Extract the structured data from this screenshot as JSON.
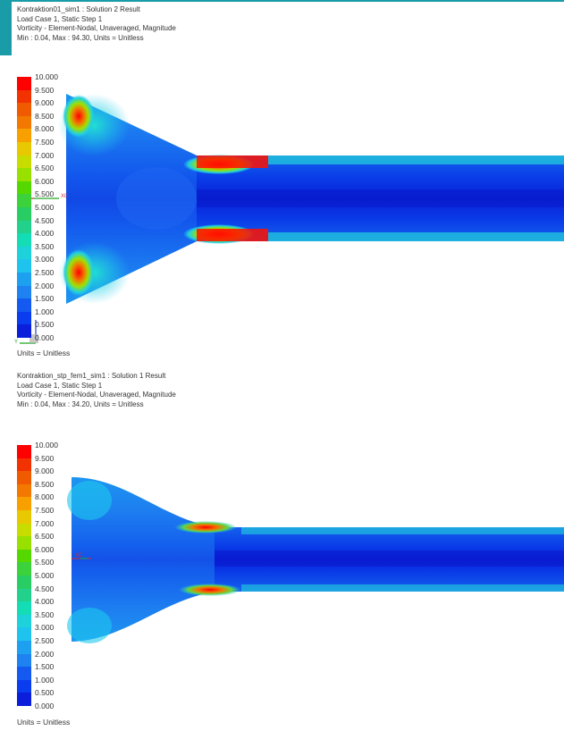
{
  "results": [
    {
      "info_lines": [
        "Kontraktion01_sim1 : Solution 2 Result",
        "Load Case 1, Static Step 1",
        "Vorticity - Element-Nodal, Unaveraged, Magnitude",
        "Min : 0.04, Max : 94.30, Units = Unitless"
      ],
      "units_label": "Units = Unitless",
      "triad": {
        "axis_x": "XC",
        "axis_y": "Y"
      }
    },
    {
      "info_lines": [
        "Kontraktion_stp_fem1_sim1 : Solution 1 Result",
        "Load Case 1, Static Step 1",
        "Vorticity - Element-Nodal, Unaveraged, Magnitude",
        "Min : 0.04, Max : 34.20, Units = Unitless"
      ],
      "units_label": "Units = Unitless",
      "triad": {
        "axis_x": "XC",
        "axis_y": ""
      }
    }
  ],
  "legend": {
    "labels": [
      "10.000",
      "9.500",
      "9.000",
      "8.500",
      "8.000",
      "7.500",
      "7.000",
      "6.500",
      "6.000",
      "5.500",
      "5.000",
      "4.500",
      "4.000",
      "3.500",
      "3.000",
      "2.500",
      "2.000",
      "1.500",
      "1.000",
      "0.500",
      "0.000"
    ],
    "colors": [
      "#ff0000",
      "#f23200",
      "#f05a00",
      "#f27800",
      "#f7a000",
      "#e8c800",
      "#c8dc00",
      "#98e000",
      "#55d800",
      "#3cd23c",
      "#28cd64",
      "#22d28c",
      "#14dcb4",
      "#1ed2dc",
      "#1ec3ee",
      "#1ea0f0",
      "#1e82f0",
      "#145af0",
      "#0a3cf0",
      "#0a1edc",
      "#0000cd"
    ]
  },
  "colors": {
    "accent": "#1a9ba8",
    "field_low": "#0a2fe0",
    "field_mid": "#1e78f0",
    "field_high": "#ff0000"
  }
}
